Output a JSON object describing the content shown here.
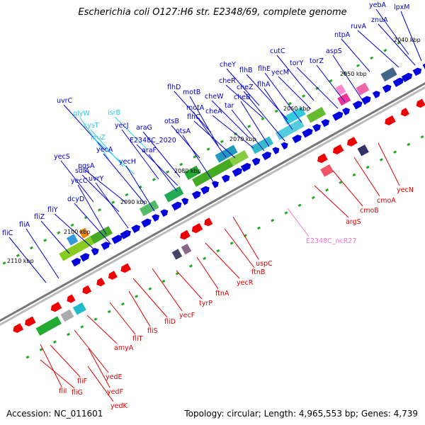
{
  "title": "Escherichia coli O127:H6 str. E2348/69, complete genome",
  "footer": {
    "accession": "Accession: NC_011601",
    "topology": "Topology: circular; Length: 4,965,553 bp; Genes: 4,739"
  },
  "colors": {
    "forward_gene": "#0000dd",
    "reverse_gene": "#ee0000",
    "forward_label": "#0000cc",
    "reverse_label": "#dd0000",
    "rna_label": "#33ccee",
    "ncrna_label": "#ee77cc",
    "backbone": "#888888",
    "gc_skew": "#22aa22"
  },
  "tick_labels": [
    "2040 kbp",
    "2050 kbp",
    "2060 kbp",
    "2070 kbp",
    "2080 kbp",
    "2090 kbp",
    "2100 kbp",
    "2110 kbp"
  ],
  "labels_forward": [
    {
      "text": "lpxM",
      "kind": "forward"
    },
    {
      "text": "yebA",
      "kind": "forward"
    },
    {
      "text": "znuA",
      "kind": "forward"
    },
    {
      "text": "ruvA",
      "kind": "forward"
    },
    {
      "text": "ntpA",
      "kind": "forward"
    },
    {
      "text": "aspS",
      "kind": "forward"
    },
    {
      "text": "cutC",
      "kind": "forward"
    },
    {
      "text": "torY",
      "kind": "forward"
    },
    {
      "text": "torZ",
      "kind": "forward"
    },
    {
      "text": "yecM",
      "kind": "forward"
    },
    {
      "text": "flhE",
      "kind": "forward"
    },
    {
      "text": "flhB",
      "kind": "forward"
    },
    {
      "text": "flhA",
      "kind": "forward"
    },
    {
      "text": "cheY",
      "kind": "forward"
    },
    {
      "text": "cheR",
      "kind": "forward"
    },
    {
      "text": "cheZ",
      "kind": "forward"
    },
    {
      "text": "cheB",
      "kind": "forward"
    },
    {
      "text": "tar",
      "kind": "forward"
    },
    {
      "text": "cheW",
      "kind": "forward"
    },
    {
      "text": "cheA",
      "kind": "forward"
    },
    {
      "text": "motB",
      "kind": "forward"
    },
    {
      "text": "motA",
      "kind": "forward"
    },
    {
      "text": "flhD",
      "kind": "forward"
    },
    {
      "text": "flhC",
      "kind": "forward"
    },
    {
      "text": "otsB",
      "kind": "forward"
    },
    {
      "text": "otsA",
      "kind": "forward"
    },
    {
      "text": "araG",
      "kind": "forward"
    },
    {
      "text": "E2348C_2020",
      "kind": "forward"
    },
    {
      "text": "araF",
      "kind": "forward"
    },
    {
      "text": "isrB",
      "kind": "rna"
    },
    {
      "text": "yecJ",
      "kind": "forward"
    },
    {
      "text": "uvrC",
      "kind": "forward"
    },
    {
      "text": "glyW",
      "kind": "rna"
    },
    {
      "text": "cysT",
      "kind": "rna"
    },
    {
      "text": "leuZ",
      "kind": "rna"
    },
    {
      "text": "yecA",
      "kind": "forward"
    },
    {
      "text": "yecH",
      "kind": "forward"
    },
    {
      "text": "yecS",
      "kind": "forward"
    },
    {
      "text": "sdiA",
      "kind": "forward"
    },
    {
      "text": "pgsA",
      "kind": "forward"
    },
    {
      "text": "yecC",
      "kind": "forward"
    },
    {
      "text": "uvrY",
      "kind": "forward"
    },
    {
      "text": "dcyD",
      "kind": "forward"
    },
    {
      "text": "fliY",
      "kind": "forward"
    },
    {
      "text": "fliZ",
      "kind": "forward"
    },
    {
      "text": "fliA",
      "kind": "forward"
    },
    {
      "text": "fliC",
      "kind": "forward"
    }
  ],
  "labels_reverse": [
    {
      "text": "yecN",
      "kind": "reverse"
    },
    {
      "text": "cmoA",
      "kind": "reverse"
    },
    {
      "text": "cmoB",
      "kind": "reverse"
    },
    {
      "text": "argS",
      "kind": "reverse"
    },
    {
      "text": "E2348C_ncR27",
      "kind": "ncrna"
    },
    {
      "text": "uspC",
      "kind": "reverse"
    },
    {
      "text": "ftnB",
      "kind": "reverse"
    },
    {
      "text": "yecR",
      "kind": "reverse"
    },
    {
      "text": "ftnA",
      "kind": "reverse"
    },
    {
      "text": "tyrP",
      "kind": "reverse"
    },
    {
      "text": "yecF",
      "kind": "reverse"
    },
    {
      "text": "fliD",
      "kind": "reverse"
    },
    {
      "text": "fliS",
      "kind": "reverse"
    },
    {
      "text": "fliT",
      "kind": "reverse"
    },
    {
      "text": "amyA",
      "kind": "reverse"
    },
    {
      "text": "yedE",
      "kind": "reverse"
    },
    {
      "text": "yedF",
      "kind": "reverse"
    },
    {
      "text": "yedK",
      "kind": "reverse"
    },
    {
      "text": "fliF",
      "kind": "reverse"
    },
    {
      "text": "fliG",
      "kind": "reverse"
    },
    {
      "text": "fliI",
      "kind": "reverse"
    }
  ]
}
